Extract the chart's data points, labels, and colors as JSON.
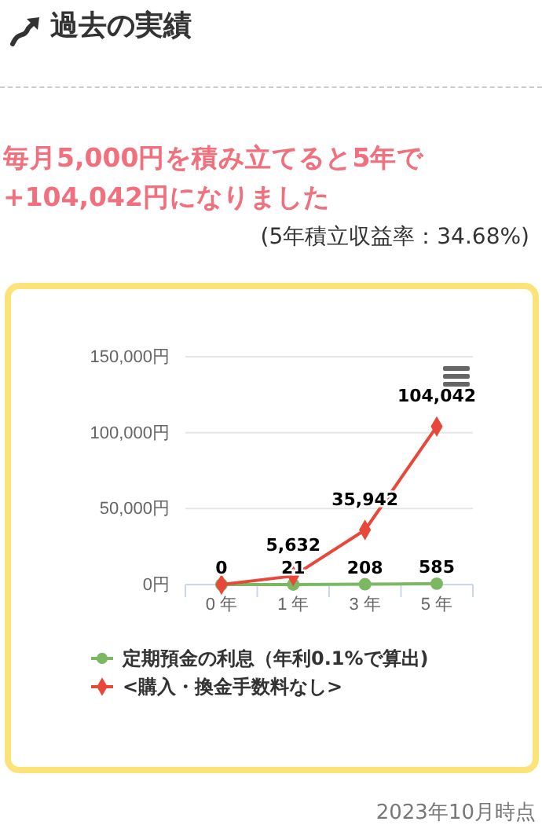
{
  "chart_data": {
    "type": "line",
    "title": "過去の実績",
    "subtitle": "毎月5,000円を積み立てると5年で+104,042円になりました",
    "annotations": [
      "(5年積立収益率：34.68%)",
      "2023年10月時点"
    ],
    "categories": [
      "0 年",
      "1 年",
      "3 年",
      "5 年"
    ],
    "series": [
      {
        "name": "定期預金の利息（年利0.1%で算出)",
        "color": "#7cb862",
        "marker": "circle",
        "values": [
          0,
          21,
          208,
          585
        ],
        "value_labels": [
          "0",
          "21",
          "208",
          "585"
        ]
      },
      {
        "name": "<購入・換金手数料なし>",
        "color": "#e8483a",
        "marker": "diamond",
        "values": [
          0,
          5632,
          35942,
          104042
        ],
        "value_labels": [
          null,
          "5,632",
          "35,942",
          "104,042"
        ]
      }
    ],
    "ylim": [
      0,
      150000
    ],
    "yticks": [
      {
        "value": 0,
        "label": "0円"
      },
      {
        "value": 50000,
        "label": "50,000円"
      },
      {
        "value": 100000,
        "label": "100,000円"
      },
      {
        "value": 150000,
        "label": "150,000円"
      }
    ],
    "grid": "y",
    "legend": "bottom",
    "line_style": "solid"
  }
}
